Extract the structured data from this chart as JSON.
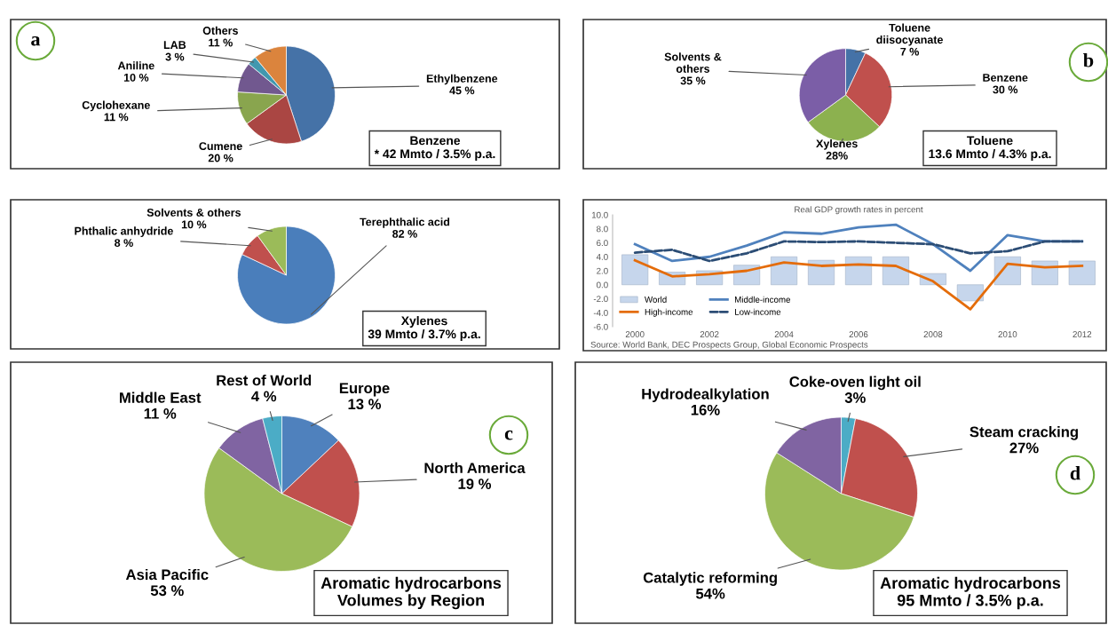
{
  "chart_data": [
    {
      "type": "pie",
      "categories": [
        "Ethylbenzene",
        "Cumene",
        "Cyclohexane",
        "Aniline",
        "LAB",
        "Others"
      ],
      "values": [
        45,
        20,
        11,
        10,
        3,
        11
      ],
      "value_labels": [
        "45 %",
        "20 %",
        "11 %",
        "10 %",
        "3 %",
        "11 %"
      ],
      "colors": [
        "#4572a7",
        "#aa4643",
        "#89a54e",
        "#71588f",
        "#4198af",
        "#db843d"
      ],
      "annotations": [
        "Benzene\n* 42 Mmto / 3.5% p.a.",
        "a"
      ]
    },
    {
      "type": "pie",
      "categories": [
        "Toluene\ndiisocyanate",
        "Benzene",
        "Xylenes",
        "Solvents &\nothers"
      ],
      "values": [
        7,
        30,
        28,
        35
      ],
      "value_labels": [
        "7 %",
        "30 %",
        "28%",
        "35 %"
      ],
      "colors": [
        "#4572a7",
        "#c0504d",
        "#8cb14f",
        "#7b5ea7"
      ],
      "annotations": [
        "Toluene\n13.6 Mmto / 4.3% p.a.",
        "b"
      ]
    },
    {
      "type": "pie",
      "categories": [
        "Terephthalic acid",
        "Phthalic anhydride",
        "Solvents & others"
      ],
      "values": [
        82,
        8,
        10
      ],
      "value_labels": [
        "82 %",
        "8 %",
        "10 %"
      ],
      "colors": [
        "#4a7ebb",
        "#c0504d",
        "#9bbb59"
      ],
      "annotations": [
        "Xylenes\n39 Mmto / 3.7% p.a."
      ]
    },
    {
      "type": "bar",
      "title": "Real GDP growth rates in percent",
      "x": [
        2000,
        2001,
        2002,
        2003,
        2004,
        2005,
        2006,
        2007,
        2008,
        2009,
        2010,
        2011,
        2012
      ],
      "xlim": [
        1999.4,
        2012.6
      ],
      "xticks": [
        2000,
        2002,
        2004,
        2006,
        2008,
        2010,
        2012
      ],
      "ylim": [
        -6,
        10
      ],
      "yticks": [
        {
          "value": -6,
          "label": "-6.0"
        },
        {
          "value": -4,
          "label": "-4.0"
        },
        {
          "value": -2,
          "label": "-2.0"
        },
        {
          "value": 0,
          "label": "0.0"
        },
        {
          "value": 2,
          "label": "2.0"
        },
        {
          "value": 4,
          "label": "4.0"
        },
        {
          "value": 6,
          "label": "6.0"
        },
        {
          "value": 8,
          "label": "8.0"
        },
        {
          "value": 10,
          "label": "10.0"
        }
      ],
      "legend": "bottom left",
      "series": [
        {
          "name": "World",
          "type": "bar",
          "color": "#c6d6ec",
          "values": [
            4.3,
            1.8,
            2.0,
            2.8,
            4.0,
            3.5,
            4.0,
            4.0,
            1.6,
            -2.3,
            4.0,
            3.4,
            3.4
          ]
        },
        {
          "name": "High-income",
          "type": "line",
          "color": "#e46c0a",
          "line_style": "solid",
          "values": [
            3.5,
            1.2,
            1.5,
            2.0,
            3.2,
            2.7,
            2.9,
            2.7,
            0.5,
            -3.5,
            3.0,
            2.5,
            2.7
          ]
        },
        {
          "name": "Middle-income",
          "type": "line",
          "color": "#4f81bd",
          "line_style": "solid",
          "values": [
            5.8,
            3.4,
            4.0,
            5.6,
            7.5,
            7.3,
            8.2,
            8.6,
            5.8,
            2.0,
            7.1,
            6.2,
            6.2
          ]
        },
        {
          "name": "Low-income",
          "type": "line",
          "color": "#2c4d75",
          "line_style": "dashed",
          "values": [
            4.6,
            5.0,
            3.4,
            4.5,
            6.2,
            6.1,
            6.2,
            6.0,
            5.8,
            4.5,
            4.8,
            6.2,
            6.2
          ]
        }
      ],
      "annotations": [
        "Source: World Bank, DEC Prospects Group, Global Economic Prospects"
      ]
    },
    {
      "type": "pie",
      "categories": [
        "Europe",
        "North America",
        "Asia Pacific",
        "Middle East",
        "Rest of World"
      ],
      "values": [
        13,
        19,
        53,
        11,
        4
      ],
      "value_labels": [
        "13 %",
        "19 %",
        "53 %",
        "11 %",
        "4 %"
      ],
      "colors": [
        "#4f81bd",
        "#c0504d",
        "#9bbb59",
        "#8064a2",
        "#4bacc6"
      ],
      "annotations": [
        "Aromatic hydrocarbons\nVolumes by Region",
        "c"
      ]
    },
    {
      "type": "pie",
      "categories": [
        "Coke-oven light oil",
        "Steam cracking",
        "Catalytic reforming",
        "Hydrodealkylation"
      ],
      "values": [
        3,
        27,
        54,
        16
      ],
      "value_labels": [
        "3%",
        "27%",
        "54%",
        "16%"
      ],
      "colors": [
        "#4bacc6",
        "#c0504d",
        "#9bbb59",
        "#8064a2"
      ],
      "annotations": [
        "Aromatic hydrocarbons\n95 Mmto / 3.5% p.a.",
        "d"
      ]
    }
  ]
}
